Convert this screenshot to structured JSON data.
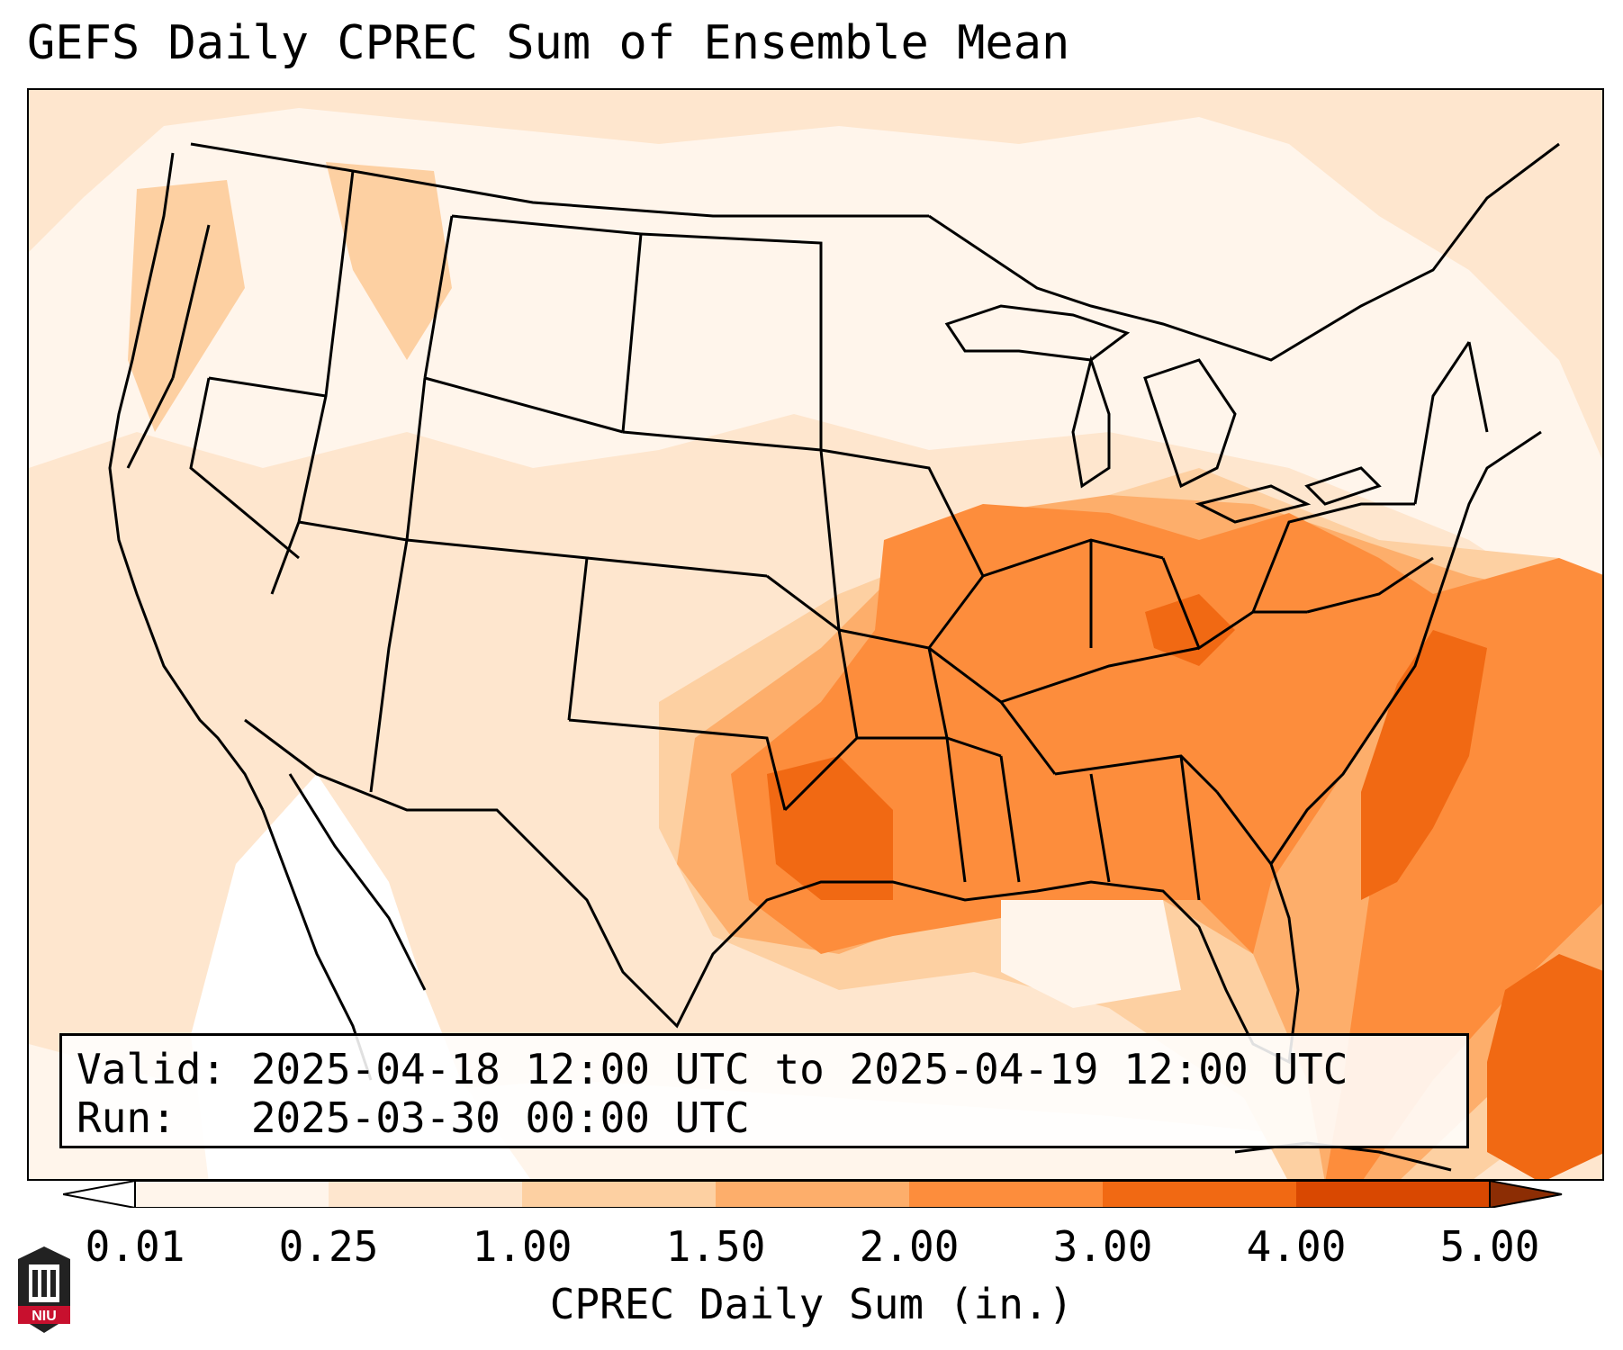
{
  "title": "GEFS Daily CPREC Sum of Ensemble Mean",
  "info": {
    "valid_line": "Valid: 2025-04-18 12:00 UTC to 2025-04-19 12:00 UTC",
    "run_line": "Run:   2025-03-30 00:00 UTC"
  },
  "colorbar": {
    "label": "CPREC Daily Sum (in.)",
    "ticks": [
      "0.01",
      "0.25",
      "1.00",
      "1.50",
      "2.00",
      "3.00",
      "4.00",
      "5.00"
    ],
    "colors": [
      "#fff5eb",
      "#fee6ce",
      "#fdd0a2",
      "#fdae6b",
      "#fd8d3c",
      "#f16913",
      "#d94801",
      "#8c2d04"
    ]
  },
  "logo": {
    "text": "NIU"
  }
}
